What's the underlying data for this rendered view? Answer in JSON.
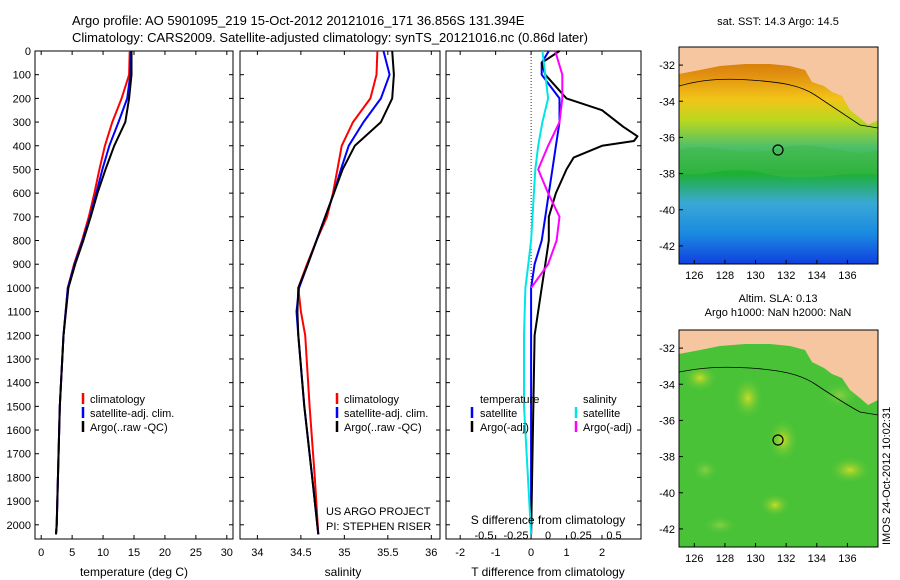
{
  "header": {
    "line1": "Argo profile: AO 5901095_219 15-Oct-2012 20121016_171 36.856S 131.394E",
    "line2": "Climatology: CARS2009. Satellite-adjusted climatology: synTS_20121016.nc (0.86d later)"
  },
  "colors": {
    "climatology": "#ff0000",
    "satellite": "#0000ff",
    "argo": "#000000",
    "sat_s": "#00e5e5",
    "argo_s": "#ff00ff"
  },
  "credit": {
    "line1": "US ARGO PROJECT",
    "line2": "PI: STEPHEN RISER"
  },
  "timestamp": "IMOS 24-Oct-2012 10:02:31",
  "chart_data": [
    {
      "type": "line",
      "xlabel": "temperature (deg C)",
      "ylim": [
        2060,
        0
      ],
      "xlim": [
        -1,
        31
      ],
      "yticks": [
        0,
        100,
        200,
        300,
        400,
        500,
        600,
        700,
        800,
        900,
        1000,
        1100,
        1200,
        1300,
        1400,
        1500,
        1600,
        1700,
        1800,
        1900,
        2000
      ],
      "xticks": [
        0,
        5,
        10,
        15,
        20,
        25,
        30
      ],
      "legend": [
        "climatology",
        "satellite-adj. clim.",
        "Argo(..raw -QC)"
      ],
      "series": [
        {
          "name": "climatology",
          "color": "#ff0000",
          "depth": [
            0,
            100,
            200,
            300,
            400,
            500,
            600,
            700,
            800,
            900,
            1000,
            1200,
            1500,
            2000,
            2040
          ],
          "values": [
            14.3,
            14.2,
            13.0,
            11.5,
            10.3,
            9.4,
            8.6,
            7.7,
            6.6,
            5.3,
            4.3,
            3.6,
            3.0,
            2.5,
            2.4
          ]
        },
        {
          "name": "satellite-adj. clim.",
          "color": "#0000ff",
          "depth": [
            0,
            100,
            200,
            300,
            400,
            500,
            600,
            700,
            800,
            900,
            1000,
            1200,
            1500,
            2000,
            2040
          ],
          "values": [
            14.5,
            14.4,
            13.9,
            12.5,
            11.0,
            9.9,
            8.9,
            7.9,
            6.7,
            5.4,
            4.3,
            3.6,
            3.0,
            2.5,
            2.4
          ]
        },
        {
          "name": "Argo(..raw -QC)",
          "color": "#000000",
          "depth": [
            0,
            100,
            200,
            300,
            400,
            500,
            600,
            700,
            800,
            900,
            1000,
            1200,
            1500,
            2000,
            2040
          ],
          "values": [
            14.6,
            14.6,
            14.2,
            13.6,
            11.8,
            10.4,
            9.1,
            8.0,
            6.8,
            5.5,
            4.4,
            3.6,
            3.0,
            2.5,
            2.4
          ]
        }
      ]
    },
    {
      "type": "line",
      "xlabel": "salinity",
      "ylim": [
        2060,
        0
      ],
      "xlim": [
        33.8,
        36.1
      ],
      "xticks": [
        34,
        34.5,
        35,
        35.5,
        36
      ],
      "legend": [
        "climatology",
        "satellite-adj. clim.",
        "Argo(..raw -QC)"
      ],
      "series": [
        {
          "name": "climatology",
          "color": "#ff0000",
          "depth": [
            0,
            100,
            200,
            300,
            400,
            500,
            600,
            700,
            800,
            900,
            1000,
            1100,
            1200,
            1500,
            1800,
            2040
          ],
          "values": [
            35.38,
            35.37,
            35.3,
            35.1,
            34.97,
            34.92,
            34.87,
            34.8,
            34.68,
            34.57,
            34.47,
            34.5,
            34.55,
            34.6,
            34.66,
            34.7
          ]
        },
        {
          "name": "satellite-adj. clim.",
          "color": "#0000ff",
          "depth": [
            0,
            100,
            200,
            300,
            400,
            500,
            600,
            700,
            800,
            900,
            1000,
            1100,
            1200,
            1500,
            1800,
            2040
          ],
          "values": [
            35.45,
            35.52,
            35.42,
            35.22,
            35.05,
            34.96,
            34.88,
            34.78,
            34.68,
            34.58,
            34.48,
            34.45,
            34.47,
            34.54,
            34.63,
            34.7
          ]
        },
        {
          "name": "Argo(..raw -QC)",
          "color": "#000000",
          "depth": [
            0,
            100,
            200,
            300,
            400,
            500,
            600,
            700,
            800,
            900,
            1000,
            1100,
            1200,
            1500,
            1800,
            2040
          ],
          "values": [
            35.55,
            35.57,
            35.55,
            35.42,
            35.12,
            34.98,
            34.88,
            34.78,
            34.68,
            34.58,
            34.47,
            34.46,
            34.47,
            34.54,
            34.63,
            34.7
          ]
        }
      ]
    },
    {
      "type": "line",
      "xlabel": "T difference from climatology",
      "xlabel_top": "S difference from climatology",
      "ylim": [
        2060,
        0
      ],
      "xlim": [
        -2.4,
        3.1
      ],
      "xticks": [
        -2,
        -1,
        0,
        1,
        2
      ],
      "xticks_top": [
        "-0.5",
        "-0.25",
        "0",
        "0.25",
        "0.5"
      ],
      "legend_t": [
        "temperature",
        "satellite",
        "Argo(-adj)"
      ],
      "legend_s": [
        "salinity",
        "satellite",
        "Argo(-adj)"
      ],
      "series": [
        {
          "name": "temperature satellite",
          "color": "#0000ff",
          "depth": [
            0,
            50,
            100,
            200,
            300,
            400,
            500,
            600,
            700,
            800,
            900,
            1000,
            1100,
            1200,
            1500,
            2040
          ],
          "values": [
            0.5,
            0.3,
            0.3,
            0.8,
            0.8,
            0.7,
            0.6,
            0.5,
            0.4,
            0.3,
            0.1,
            0.0,
            0.0,
            0.0,
            0.0,
            0.0
          ]
        },
        {
          "name": "temperature Argo(-adj)",
          "color": "#000000",
          "depth": [
            0,
            50,
            100,
            200,
            250,
            320,
            360,
            380,
            400,
            450,
            500,
            600,
            700,
            800,
            900,
            1000,
            1200,
            2040
          ],
          "values": [
            0.8,
            0.3,
            0.4,
            1.0,
            2.0,
            2.6,
            3.0,
            2.9,
            2.0,
            1.2,
            1.0,
            0.7,
            0.5,
            0.5,
            0.4,
            0.3,
            0.1,
            0.0
          ]
        },
        {
          "name": "salinity satellite",
          "color": "#00e5e5",
          "depth": [
            0,
            100,
            200,
            300,
            400,
            500,
            700,
            800,
            900,
            1000,
            1200,
            1500,
            2040
          ],
          "values": [
            0.08,
            0.1,
            0.12,
            0.08,
            0.05,
            0.03,
            0.01,
            0.0,
            -0.02,
            -0.04,
            -0.05,
            -0.05,
            0.0
          ]
        },
        {
          "name": "salinity Argo(-adj)",
          "color": "#ff00ff",
          "depth": [
            0,
            100,
            200,
            300,
            400,
            500,
            600,
            700,
            800,
            900,
            1000
          ],
          "values": [
            0.17,
            0.22,
            0.22,
            0.2,
            0.12,
            0.05,
            0.12,
            0.2,
            0.18,
            0.12,
            0.0
          ]
        }
      ]
    },
    {
      "type": "heatmap",
      "title": "sat. SST: 14.3 Argo: 14.5",
      "xticks": [
        "126",
        "128",
        "130",
        "132",
        "134",
        "136"
      ],
      "yticks": [
        "-32",
        "-34",
        "-36",
        "-38",
        "-40",
        "-42"
      ],
      "xlim": [
        125,
        138
      ],
      "ylim": [
        -43,
        -31
      ],
      "marker": {
        "lon": 131.394,
        "lat": -36.856
      }
    },
    {
      "type": "heatmap",
      "title": "Altim. SLA: 0.13",
      "subtitle": "Argo h1000: NaN h2000: NaN",
      "xticks": [
        "126",
        "128",
        "130",
        "132",
        "134",
        "136"
      ],
      "yticks": [
        "-32",
        "-34",
        "-36",
        "-38",
        "-40",
        "-42"
      ],
      "xlim": [
        125,
        138
      ],
      "ylim": [
        -43,
        -31
      ],
      "marker": {
        "lon": 131.394,
        "lat": -36.856
      }
    }
  ]
}
